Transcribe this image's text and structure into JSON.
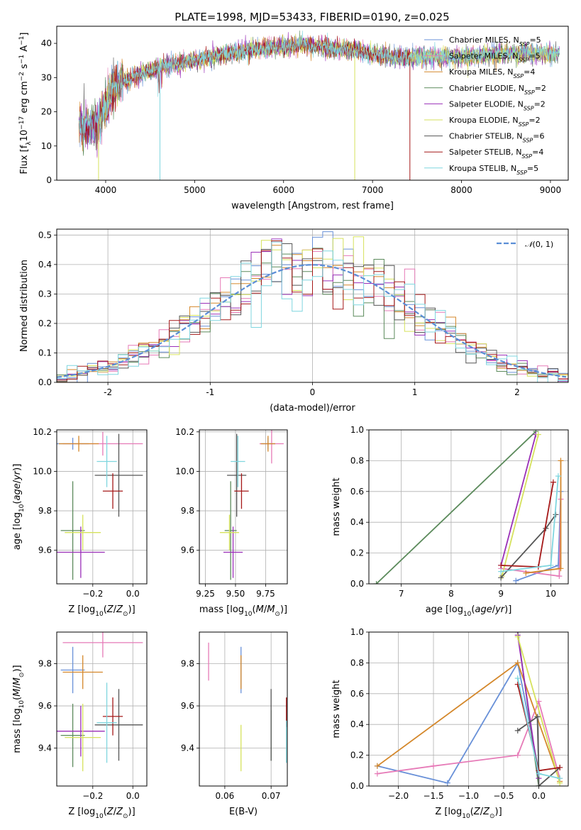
{
  "title": "PLATE=1998, MJD=53433, FIBERID=0190, z=0.025",
  "colors": [
    "#6890d8",
    "#e67ab7",
    "#d4872a",
    "#5b8a5b",
    "#9a2fb8",
    "#d6e25c",
    "#555555",
    "#a51818",
    "#7fd6df"
  ],
  "series_names": [
    {
      "base": "Chabrier MILES, N",
      "sub": "SSP",
      "tail": "=5"
    },
    {
      "base": "Salpeter MILES, N",
      "sub": "SSP",
      "tail": "=5"
    },
    {
      "base": "Kroupa MILES, N",
      "sub": "SSP",
      "tail": "=4"
    },
    {
      "base": "Chabrier ELODIE, N",
      "sub": "SSP",
      "tail": "=2"
    },
    {
      "base": "Salpeter ELODIE, N",
      "sub": "SSP",
      "tail": "=2"
    },
    {
      "base": "Kroupa ELODIE, N",
      "sub": "SSP",
      "tail": "=2"
    },
    {
      "base": "Chabrier STELIB, N",
      "sub": "SSP",
      "tail": "=6"
    },
    {
      "base": "Salpeter STELIB, N",
      "sub": "SSP",
      "tail": "=4"
    },
    {
      "base": "Kroupa STELIB, N",
      "sub": "SSP",
      "tail": "=5"
    }
  ],
  "chart_data": [
    {
      "id": "spectrum",
      "type": "line",
      "xlabel": "wavelength [Angstrom, rest frame]",
      "ylabel": "Flux [f_λ 10^-17 erg cm^-2 s^-1 A^-1]",
      "xlim": [
        3450,
        9200
      ],
      "ylim": [
        0,
        45
      ],
      "xticks": [
        4000,
        5000,
        6000,
        7000,
        8000,
        9000
      ],
      "yticks": [
        0,
        10,
        20,
        30,
        40
      ],
      "continuum": [
        [
          3700,
          17
        ],
        [
          3800,
          15
        ],
        [
          3900,
          16
        ],
        [
          4000,
          22
        ],
        [
          4100,
          27
        ],
        [
          4200,
          29
        ],
        [
          4400,
          31
        ],
        [
          4600,
          33
        ],
        [
          4800,
          34
        ],
        [
          5000,
          35
        ],
        [
          5200,
          36
        ],
        [
          5400,
          37
        ],
        [
          5600,
          38
        ],
        [
          5800,
          38.5
        ],
        [
          6000,
          39
        ],
        [
          6200,
          39.5
        ],
        [
          6400,
          39
        ],
        [
          6600,
          38.5
        ],
        [
          6800,
          38
        ],
        [
          7000,
          37
        ],
        [
          7200,
          36
        ],
        [
          7400,
          36
        ],
        [
          7600,
          36
        ],
        [
          7800,
          36
        ],
        [
          8000,
          36
        ],
        [
          8200,
          36.5
        ],
        [
          8400,
          37
        ],
        [
          8600,
          37
        ],
        [
          8800,
          37
        ],
        [
          9000,
          37
        ],
        [
          9100,
          37
        ]
      ],
      "dropouts": [
        [
          3920,
          5
        ],
        [
          4610,
          8
        ],
        [
          6800,
          4
        ],
        [
          7420,
          1
        ]
      ],
      "legend": "top-right"
    },
    {
      "id": "residuals",
      "type": "step",
      "xlabel": "(data-model)/error",
      "ylabel": "Normed distribution",
      "xlim": [
        -2.5,
        2.5
      ],
      "ylim": [
        0,
        0.52
      ],
      "xticks": [
        -2,
        -1,
        0,
        1,
        2
      ],
      "yticks": [
        0.0,
        0.1,
        0.2,
        0.3,
        0.4,
        0.5
      ],
      "bin_width": 0.1,
      "reference_curve": {
        "name": "N(0,1)",
        "mu": 0,
        "sigma": 1
      },
      "grid": true,
      "legend": "top-right"
    },
    {
      "id": "age_vs_Z",
      "type": "errorbar",
      "xlabel": "Z [log10(Z/Z⊙)]",
      "ylabel": "age [log10(age/yr)]",
      "xlim": [
        -0.38,
        0.07
      ],
      "ylim": [
        9.43,
        10.21
      ],
      "xticks": [
        -0.2,
        0.0
      ],
      "yticks": [
        9.6,
        9.8,
        10.0,
        10.2
      ],
      "points": [
        {
          "s": 0,
          "x": -0.3,
          "y": 10.14,
          "xe": 0.08,
          "ye": 0.03
        },
        {
          "s": 1,
          "x": -0.15,
          "y": 10.14,
          "xe": 0.2,
          "ye": 0.06
        },
        {
          "s": 2,
          "x": -0.27,
          "y": 10.14,
          "xe": 0.1,
          "ye": 0.04
        },
        {
          "s": 3,
          "x": -0.3,
          "y": 9.7,
          "xe": 0.06,
          "ye": 0.25
        },
        {
          "s": 4,
          "x": -0.26,
          "y": 9.59,
          "xe": 0.12,
          "ye": 0.13
        },
        {
          "s": 5,
          "x": -0.25,
          "y": 9.69,
          "xe": 0.09,
          "ye": 0.09
        },
        {
          "s": 6,
          "x": -0.07,
          "y": 9.98,
          "xe": 0.12,
          "ye": 0.21
        },
        {
          "s": 7,
          "x": -0.1,
          "y": 9.9,
          "xe": 0.05,
          "ye": 0.09
        },
        {
          "s": 8,
          "x": -0.13,
          "y": 10.05,
          "xe": 0.05,
          "ye": 0.13
        }
      ]
    },
    {
      "id": "age_vs_mass",
      "type": "errorbar",
      "xlabel": "mass [log10(M/M⊙)]",
      "ylabel": "",
      "xlim": [
        9.2,
        9.93
      ],
      "ylim": [
        9.43,
        10.21
      ],
      "xticks": [
        9.25,
        9.5,
        9.75
      ],
      "yticks": [
        9.6,
        9.8,
        10.0,
        10.2
      ],
      "points": [
        {
          "s": 0,
          "x": 9.77,
          "y": 10.14,
          "xe": 0.06,
          "ye": 0.03
        },
        {
          "s": 1,
          "x": 9.8,
          "y": 10.14,
          "xe": 0.1,
          "ye": 0.1
        },
        {
          "s": 2,
          "x": 9.77,
          "y": 10.14,
          "xe": 0.06,
          "ye": 0.04
        },
        {
          "s": 3,
          "x": 9.46,
          "y": 9.7,
          "xe": 0.05,
          "ye": 0.25
        },
        {
          "s": 4,
          "x": 9.48,
          "y": 9.59,
          "xe": 0.08,
          "ye": 0.13
        },
        {
          "s": 5,
          "x": 9.45,
          "y": 9.69,
          "xe": 0.08,
          "ye": 0.09
        },
        {
          "s": 6,
          "x": 9.51,
          "y": 9.98,
          "xe": 0.08,
          "ye": 0.21
        },
        {
          "s": 7,
          "x": 9.55,
          "y": 9.9,
          "xe": 0.06,
          "ye": 0.09
        },
        {
          "s": 8,
          "x": 9.52,
          "y": 10.05,
          "xe": 0.06,
          "ye": 0.13
        }
      ]
    },
    {
      "id": "weight_vs_age",
      "type": "line",
      "xlabel": "age [log10(age/yr)]",
      "ylabel": "mass weight",
      "xlim": [
        6.35,
        10.35
      ],
      "ylim": [
        0,
        1
      ],
      "xticks": [
        7,
        8,
        9,
        10
      ],
      "yticks": [
        0.0,
        0.2,
        0.4,
        0.6,
        0.8,
        1.0
      ],
      "series": [
        {
          "s": 0,
          "pts": [
            [
              9.3,
              0.02
            ],
            [
              10.15,
              0.12
            ],
            [
              10.2,
              0.6
            ]
          ]
        },
        {
          "s": 1,
          "pts": [
            [
              9.0,
              0.1
            ],
            [
              10.17,
              0.05
            ],
            [
              10.2,
              0.55
            ]
          ]
        },
        {
          "s": 2,
          "pts": [
            [
              9.5,
              0.07
            ],
            [
              10.2,
              0.1
            ],
            [
              10.2,
              0.8
            ]
          ]
        },
        {
          "s": 3,
          "pts": [
            [
              6.5,
              0.0
            ],
            [
              9.7,
              0.99
            ]
          ]
        },
        {
          "s": 4,
          "pts": [
            [
              9.0,
              0.12
            ],
            [
              9.7,
              0.97
            ]
          ]
        },
        {
          "s": 5,
          "pts": [
            [
              9.02,
              0.05
            ],
            [
              9.75,
              0.97
            ]
          ]
        },
        {
          "s": 6,
          "pts": [
            [
              9.0,
              0.04
            ],
            [
              9.9,
              0.36
            ],
            [
              10.1,
              0.45
            ]
          ]
        },
        {
          "s": 7,
          "pts": [
            [
              9.0,
              0.12
            ],
            [
              9.75,
              0.11
            ],
            [
              10.05,
              0.66
            ]
          ]
        },
        {
          "s": 8,
          "pts": [
            [
              9.0,
              0.08
            ],
            [
              10.0,
              0.12
            ],
            [
              10.15,
              0.7
            ]
          ]
        }
      ]
    },
    {
      "id": "mass_vs_Z",
      "type": "errorbar",
      "xlabel": "Z [log10(Z/Z⊙)]",
      "ylabel": "mass [log10(M/M⊙)]",
      "xlim": [
        -0.38,
        0.07
      ],
      "ylim": [
        9.22,
        9.95
      ],
      "xticks": [
        -0.2,
        0.0
      ],
      "yticks": [
        9.4,
        9.6,
        9.8
      ],
      "points": [
        {
          "s": 0,
          "x": -0.3,
          "y": 9.77,
          "xe": 0.06,
          "ye": 0.11
        },
        {
          "s": 1,
          "x": -0.15,
          "y": 9.9,
          "xe": 0.2,
          "ye": 0.07
        },
        {
          "s": 2,
          "x": -0.25,
          "y": 9.76,
          "xe": 0.1,
          "ye": 0.08
        },
        {
          "s": 3,
          "x": -0.3,
          "y": 9.46,
          "xe": 0.06,
          "ye": 0.15
        },
        {
          "s": 4,
          "x": -0.26,
          "y": 9.48,
          "xe": 0.12,
          "ye": 0.12
        },
        {
          "s": 5,
          "x": -0.25,
          "y": 9.45,
          "xe": 0.09,
          "ye": 0.16
        },
        {
          "s": 6,
          "x": -0.07,
          "y": 9.51,
          "xe": 0.12,
          "ye": 0.17
        },
        {
          "s": 7,
          "x": -0.1,
          "y": 9.55,
          "xe": 0.05,
          "ye": 0.09
        },
        {
          "s": 8,
          "x": -0.13,
          "y": 9.52,
          "xe": 0.05,
          "ye": 0.19
        }
      ]
    },
    {
      "id": "mass_vs_ebv",
      "type": "errorbar",
      "xlabel": "E(B-V)",
      "ylabel": "",
      "xlim": [
        0.0545,
        0.0735
      ],
      "ylim": [
        9.22,
        9.95
      ],
      "xticks": [
        0.06,
        0.07
      ],
      "yticks": [
        9.4,
        9.6,
        9.8
      ],
      "points": [
        {
          "s": 0,
          "x": 0.0635,
          "y": 9.77,
          "xe": 0,
          "ye": 0.11
        },
        {
          "s": 1,
          "x": 0.0565,
          "y": 9.81,
          "xe": 0,
          "ye": 0.09
        },
        {
          "s": 2,
          "x": 0.0635,
          "y": 9.76,
          "xe": 0,
          "ye": 0.08
        },
        {
          "s": 3,
          "x": 0.07,
          "y": 9.46,
          "xe": 0,
          "ye": 0.12
        },
        {
          "s": 5,
          "x": 0.0635,
          "y": 9.4,
          "xe": 0,
          "ye": 0.11
        },
        {
          "s": 6,
          "x": 0.07,
          "y": 9.51,
          "xe": 0,
          "ye": 0.17
        },
        {
          "s": 7,
          "x": 0.0733,
          "y": 9.57,
          "xe": 0,
          "ye": 0.07
        },
        {
          "s": 8,
          "x": 0.0733,
          "y": 9.43,
          "xe": 0,
          "ye": 0.1
        }
      ]
    },
    {
      "id": "weight_vs_Z",
      "type": "line",
      "xlabel": "Z [log10(Z/Z⊙)]",
      "ylabel": "mass weight",
      "xlim": [
        -2.42,
        0.42
      ],
      "ylim": [
        0,
        1
      ],
      "xticks": [
        -2.0,
        -1.5,
        -1.0,
        -0.5,
        0.0
      ],
      "yticks": [
        0.0,
        0.2,
        0.4,
        0.6,
        0.8,
        1.0
      ],
      "series": [
        {
          "s": 0,
          "pts": [
            [
              -2.3,
              0.13
            ],
            [
              -1.3,
              0.02
            ],
            [
              -0.3,
              0.8
            ],
            [
              0.0,
              0.1
            ]
          ]
        },
        {
          "s": 1,
          "pts": [
            [
              -2.3,
              0.08
            ],
            [
              -1.5,
              0.13
            ],
            [
              -0.3,
              0.2
            ],
            [
              0.0,
              0.55
            ],
            [
              0.3,
              0.05
            ]
          ]
        },
        {
          "s": 2,
          "pts": [
            [
              -2.3,
              0.13
            ],
            [
              -0.3,
              0.8
            ],
            [
              0.3,
              0.03
            ]
          ]
        },
        {
          "s": 3,
          "pts": [
            [
              -0.3,
              1.0
            ],
            [
              0.0,
              0.0
            ]
          ]
        },
        {
          "s": 4,
          "pts": [
            [
              -0.3,
              0.98
            ],
            [
              0.0,
              0.05
            ]
          ]
        },
        {
          "s": 5,
          "pts": [
            [
              -0.3,
              0.97
            ],
            [
              0.3,
              0.02
            ]
          ]
        },
        {
          "s": 6,
          "pts": [
            [
              -0.3,
              0.36
            ],
            [
              -0.02,
              0.45
            ],
            [
              0.0,
              0.1
            ],
            [
              0.0,
              0.0
            ],
            [
              0.3,
              0.12
            ]
          ]
        },
        {
          "s": 7,
          "pts": [
            [
              -0.3,
              0.66
            ],
            [
              0.0,
              0.1
            ],
            [
              0.3,
              0.12
            ]
          ]
        },
        {
          "s": 8,
          "pts": [
            [
              -0.3,
              0.7
            ],
            [
              0.0,
              0.08
            ],
            [
              0.3,
              0.05
            ]
          ]
        }
      ]
    }
  ]
}
